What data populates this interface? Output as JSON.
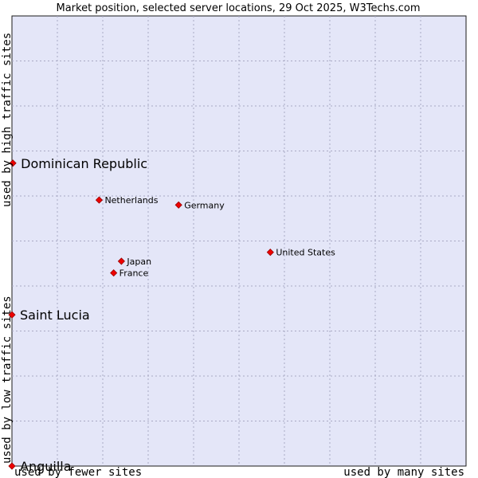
{
  "chart_data": {
    "type": "scatter",
    "title": "Market position, selected server locations, 29 Oct 2025, W3Techs.com",
    "xlabel_left": "used by fewer sites",
    "xlabel_right": "used by many sites",
    "ylabel_bottom": "used by low traffic sites",
    "ylabel_top": "used by high traffic sites",
    "xlim": [
      0,
      100
    ],
    "ylim": [
      0,
      100
    ],
    "grid": true,
    "grid_divisions": {
      "x": 10,
      "y": 10
    },
    "colors": {
      "point": "#ee0000",
      "plot_background": "#e4e6f8",
      "grid": "#a9a9c3"
    },
    "points": [
      {
        "label": "Dominican Republic",
        "x": 0.2,
        "y": 67.3,
        "highlight": true
      },
      {
        "label": "Netherlands",
        "x": 19.2,
        "y": 59.1,
        "highlight": false
      },
      {
        "label": "Germany",
        "x": 36.7,
        "y": 58.0,
        "highlight": false
      },
      {
        "label": "United States",
        "x": 56.9,
        "y": 47.5,
        "highlight": false
      },
      {
        "label": "Japan",
        "x": 24.1,
        "y": 45.5,
        "highlight": false
      },
      {
        "label": "France",
        "x": 22.4,
        "y": 42.9,
        "highlight": false
      },
      {
        "label": "Saint Lucia",
        "x": 0.0,
        "y": 33.6,
        "highlight": true
      },
      {
        "label": "Anguilla",
        "x": 0.0,
        "y": 0.0,
        "highlight": true
      }
    ]
  }
}
